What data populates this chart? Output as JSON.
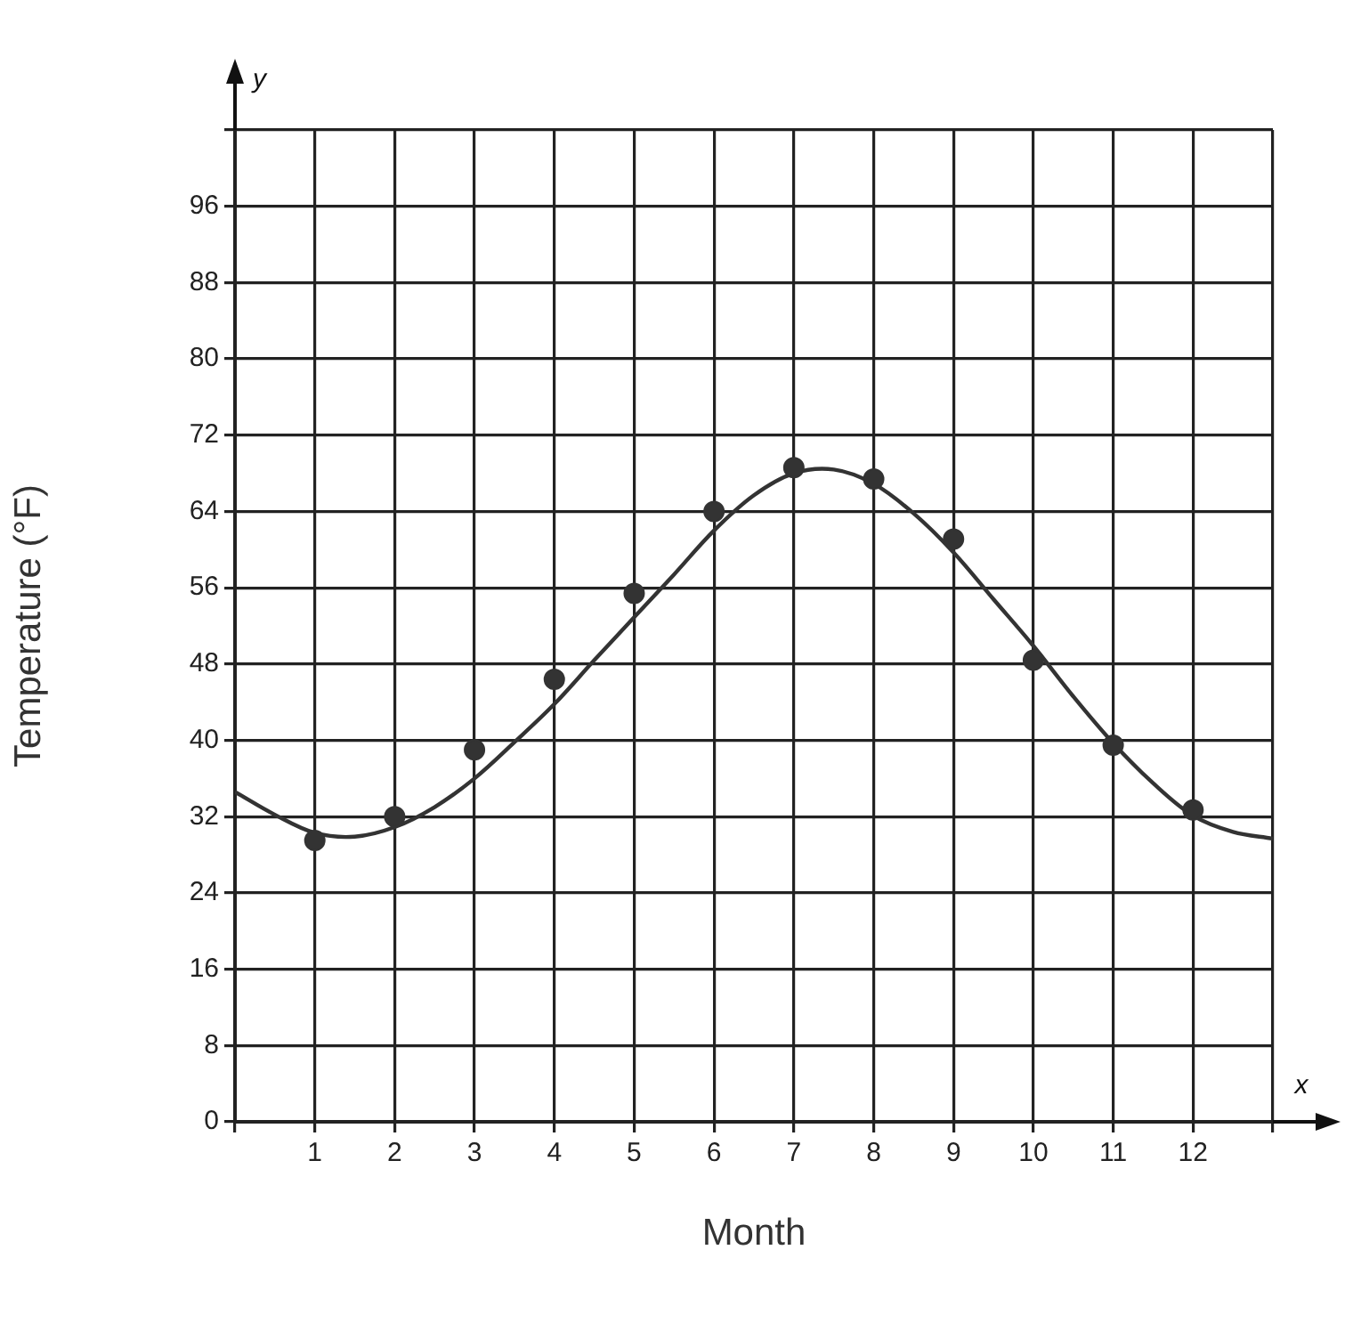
{
  "chart_data": {
    "type": "scatter",
    "xlabel": "Month",
    "ylabel": "Temperature (°F)",
    "annotations": [
      "y",
      "x"
    ],
    "xlim": [
      0,
      13
    ],
    "ylim": [
      0,
      104
    ],
    "xticks": [
      {
        "value": 0,
        "label": null
      },
      1,
      2,
      3,
      4,
      5,
      6,
      7,
      8,
      9,
      10,
      11,
      12,
      {
        "value": 13,
        "label": null
      }
    ],
    "yticks": [
      0,
      8,
      16,
      24,
      32,
      40,
      48,
      56,
      64,
      72,
      80,
      88,
      96,
      {
        "value": 104,
        "label": null
      }
    ],
    "grid": true,
    "legend": false,
    "series": [
      {
        "type": "scatter",
        "marker": "circle",
        "color": "#333333",
        "x": [
          1,
          2,
          3,
          4,
          5,
          6,
          7,
          8,
          9,
          10,
          11,
          12
        ],
        "values": [
          29.5,
          32,
          39,
          46.4,
          55.4,
          64,
          68.6,
          67.4,
          61.1,
          48.4,
          39.5,
          32.7
        ]
      },
      {
        "type": "line",
        "marker": "none",
        "line_style": "solid",
        "color": "#333333",
        "x": [
          0,
          0.5,
          1,
          1.5,
          2,
          2.5,
          3,
          3.5,
          4,
          4.5,
          5,
          5.5,
          6,
          6.5,
          7,
          7.5,
          8,
          8.5,
          9,
          9.5,
          10,
          10.5,
          11,
          11.5,
          12,
          12.5,
          13
        ],
        "values": [
          34.6,
          32.2,
          30.3,
          29.9,
          30.9,
          33,
          36,
          39.8,
          43.8,
          48.4,
          52.9,
          57.4,
          62,
          65.7,
          68,
          68.4,
          66.9,
          63.8,
          59.7,
          54.8,
          49.9,
          44.6,
          39.7,
          35.5,
          32.1,
          30.4,
          29.7
        ]
      }
    ]
  }
}
